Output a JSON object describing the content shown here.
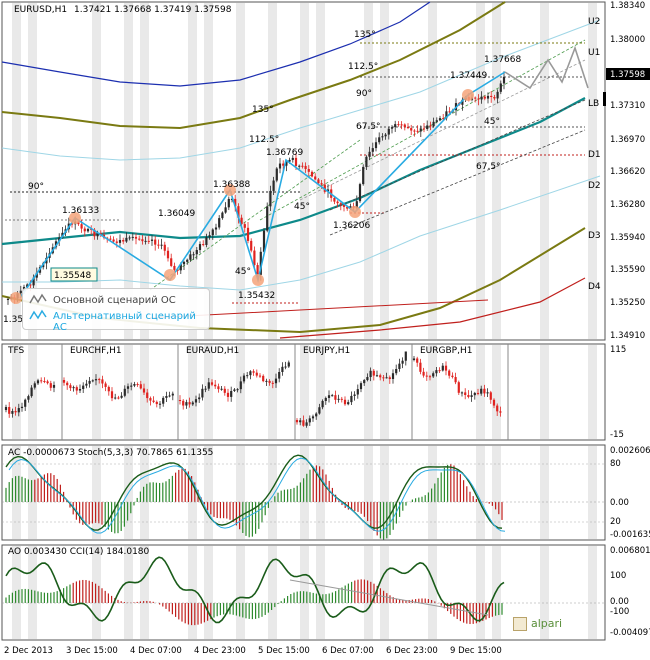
{
  "panels": {
    "main": {
      "title": "EURUSD,H1",
      "ohlc": "1.37421 1.37668 1.37419 1.37598"
    },
    "tfs": {
      "title": "TFS",
      "symbols": [
        "EURCHF,H1",
        "EURAUD,H1",
        "EURJPY,H1",
        "EURGBP,H1"
      ]
    },
    "ac": {
      "title": "AC -0.0000673  Stoch(5,3,3) 70.7865 61.1355"
    },
    "ao": {
      "title": "AO 0.003430  CCI(14) 184.0180"
    }
  },
  "price_axis": [
    "1.38340",
    "1.38000",
    "1.37598",
    "1.37310",
    "1.36970",
    "1.36620",
    "1.36280",
    "1.35940",
    "1.35590",
    "1.35250",
    "1.34910"
  ],
  "level_labels": [
    "U2",
    "U1",
    "LB",
    "D1",
    "D2",
    "D3",
    "D4"
  ],
  "tfs_axis": [
    "115",
    "-15"
  ],
  "ac_axis": [
    "0.002606",
    "80",
    "0.00",
    "20",
    "-0.001635"
  ],
  "ao_axis": [
    "0.006801",
    "100",
    "0.00",
    "-100",
    "-0.004097"
  ],
  "time_axis": [
    "2 Dec 2013",
    "3 Dec 15:00",
    "4 Dec 07:00",
    "4 Dec 23:00",
    "5 Dec 15:00",
    "6 Dec 07:00",
    "6 Dec 23:00",
    "9 Dec 15:00"
  ],
  "annotations": {
    "prices": [
      "1.36133",
      "1.36049",
      "1.35548",
      "1.36388",
      "1.35432",
      "1.36769",
      "1.36206",
      "1.37449",
      "1.37668",
      "1.35"
    ],
    "angles": [
      "90°",
      "135°",
      "112.5°",
      "90°",
      "67.5°",
      "45°",
      "67.5°",
      "135°",
      "112.5°",
      "45°",
      "45°"
    ]
  },
  "legend": {
    "main": "Основной сценарий ОС",
    "alt": "Альтернативный сценарий АС"
  },
  "logo": "alpari",
  "colors": {
    "up": "#2a2a2a",
    "down": "#e0221f",
    "teal": "#0e8a8a",
    "olive": "#7a7a12",
    "navy": "#1c2fb0",
    "cyan": "#29abe2",
    "red": "#c0201d"
  },
  "chart_data": {
    "type": "candlestick",
    "symbol": "EURUSD",
    "timeframe": "H1",
    "last_close": 1.37598,
    "ylim": [
      1.3491,
      1.3834
    ],
    "swing_points": [
      {
        "label": "1.36133",
        "value": 1.36133
      },
      {
        "label": "1.35548",
        "value": 1.35548
      },
      {
        "label": "1.36388",
        "value": 1.36388
      },
      {
        "label": "1.35432",
        "value": 1.35432
      },
      {
        "label": "1.36769",
        "value": 1.36769
      },
      {
        "label": "1.36206",
        "value": 1.36206
      },
      {
        "label": "1.37449",
        "value": 1.37449
      },
      {
        "label": "1.37668",
        "value": 1.37668
      }
    ],
    "indicators": {
      "AC": -6.73e-05,
      "Stoch(5,3,3)": [
        70.7865,
        61.1355
      ],
      "AO": 0.00343,
      "CCI(14)": 184.018
    }
  }
}
